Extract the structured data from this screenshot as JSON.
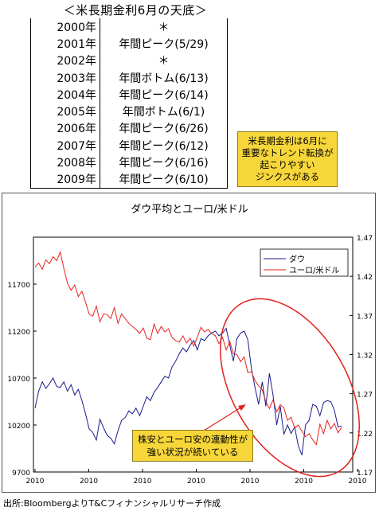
{
  "table": {
    "title": "＜米長期金利6月の天底＞",
    "rows": [
      {
        "year": "2000年",
        "value": "＊"
      },
      {
        "year": "2001年",
        "value": "年間ピーク(5/29)"
      },
      {
        "year": "2002年",
        "value": "＊"
      },
      {
        "year": "2003年",
        "value": "年間ボトム(6/13)"
      },
      {
        "year": "2004年",
        "value": "年間ピーク(6/14)"
      },
      {
        "year": "2005年",
        "value": "年間ボトム(6/1)"
      },
      {
        "year": "2006年",
        "value": "年間ピーク(6/26)"
      },
      {
        "year": "2007年",
        "value": "年間ピーク(6/12)"
      },
      {
        "year": "2008年",
        "value": "年間ピーク(6/16)"
      },
      {
        "year": "2009年",
        "value": "年間ピーク(6/10)"
      }
    ]
  },
  "note": {
    "line1": "米長期金利は6月に",
    "line2": "重要なトレンド転換が",
    "line3": "起こりやすい",
    "line4": "ジンクスがある"
  },
  "callout": {
    "line1": "株安とユーロ安の連動性が",
    "line2": "強い状況が続いている"
  },
  "source": "出所:BloombergよりT&Cフィナンシャルリサーチ作成",
  "colors": {
    "dow": "#1a1a8c",
    "eur": "#e8231e",
    "ellipse": "#e0201a",
    "highlight": "#f7d63a"
  },
  "chart_data": {
    "type": "line",
    "title": "ダウ平均とユーロ/米ドル",
    "x_tick_labels": [
      "2010",
      "2010",
      "2010",
      "2010",
      "2010",
      "2010",
      "2010"
    ],
    "y_left": {
      "ticks": [
        9700,
        10200,
        10700,
        11200,
        11700
      ],
      "range": [
        9700,
        12200
      ]
    },
    "y_right": {
      "ticks": [
        1.17,
        1.22,
        1.27,
        1.32,
        1.37,
        1.42,
        1.47
      ],
      "range": [
        1.17,
        1.47
      ]
    },
    "legend_position": "top-right",
    "series": [
      {
        "name": "ダウ",
        "axis": "left",
        "values": [
          10380,
          10560,
          10660,
          10590,
          10640,
          10700,
          10610,
          10600,
          10660,
          10560,
          10630,
          10520,
          10580,
          10460,
          10320,
          10160,
          10120,
          10040,
          10260,
          10170,
          10090,
          10060,
          10000,
          10140,
          10250,
          10280,
          10350,
          10320,
          10380,
          10300,
          10400,
          10500,
          10460,
          10550,
          10600,
          10660,
          10720,
          10700,
          10820,
          10880,
          10960,
          11020,
          10980,
          11050,
          11100,
          11000,
          11120,
          11100,
          11150,
          11180,
          11200,
          11150,
          11180,
          11230,
          11050,
          10880,
          11120,
          11180,
          11200,
          11110,
          10800,
          10600,
          10420,
          10660,
          10400,
          10750,
          10520,
          10200,
          10400,
          10100,
          10200,
          10110,
          10180,
          9980,
          9880,
          10200,
          10250,
          10420,
          10400,
          10300,
          10440,
          10460,
          10450,
          10360,
          10180,
          10190
        ]
      },
      {
        "name": "ユーロ/米ドル",
        "axis": "right",
        "values": [
          1.432,
          1.437,
          1.429,
          1.441,
          1.436,
          1.445,
          1.44,
          1.451,
          1.43,
          1.411,
          1.402,
          1.409,
          1.394,
          1.401,
          1.387,
          1.372,
          1.369,
          1.382,
          1.362,
          1.372,
          1.371,
          1.366,
          1.38,
          1.36,
          1.372,
          1.366,
          1.36,
          1.356,
          1.352,
          1.347,
          1.354,
          1.341,
          1.339,
          1.359,
          1.347,
          1.356,
          1.349,
          1.353,
          1.342,
          1.338,
          1.336,
          1.344,
          1.335,
          1.341,
          1.331,
          1.342,
          1.355,
          1.349,
          1.352,
          1.347,
          1.344,
          1.334,
          1.342,
          1.326,
          1.337,
          1.321,
          1.32,
          1.311,
          1.317,
          1.297,
          1.298,
          1.287,
          1.28,
          1.275,
          1.26,
          1.251,
          1.262,
          1.247,
          1.256,
          1.252,
          1.236,
          1.24,
          1.226,
          1.23,
          1.222,
          1.215,
          1.219,
          1.211,
          1.205,
          1.231,
          1.219,
          1.236,
          1.225,
          1.232,
          1.22,
          1.227
        ]
      }
    ],
    "annotation": "株安とユーロ安の連動性が強い状況が続いている"
  }
}
